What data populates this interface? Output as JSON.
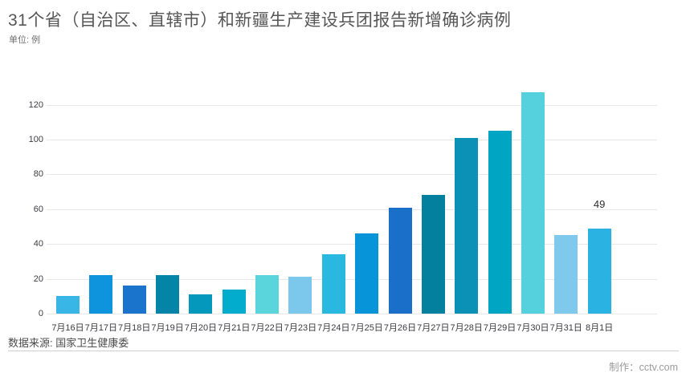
{
  "header": {
    "title": "31个省（自治区、直辖市）和新疆生产建设兵团报告新增确诊病例",
    "unit_label": "单位: 例"
  },
  "footer": {
    "source": "数据来源: 国家卫生健康委",
    "credit": "制作：cctv.com"
  },
  "chart_data": {
    "type": "bar",
    "title": "31个省（自治区、直辖市）和新疆生产建设兵团报告新增确诊病例",
    "unit": "例",
    "categories": [
      "7月16日",
      "7月17日",
      "7月18日",
      "7月19日",
      "7月20日",
      "7月21日",
      "7月22日",
      "7月23日",
      "7月24日",
      "7月25日",
      "7月26日",
      "7月27日",
      "7月28日",
      "7月29日",
      "7月30日",
      "7月31日",
      "8月1日"
    ],
    "values": [
      10,
      22,
      16,
      22,
      11,
      14,
      22,
      21,
      34,
      46,
      61,
      68,
      101,
      105,
      127,
      45,
      49
    ],
    "bar_colors": [
      "#38B6E6",
      "#0D94DC",
      "#1B74CC",
      "#0485A8",
      "#0398BC",
      "#02ACCC",
      "#5BD5DC",
      "#7CC7EC",
      "#29B8E0",
      "#0894D8",
      "#1A70C8",
      "#04809F",
      "#0A91B5",
      "#00A5C4",
      "#55D1DE",
      "#7FC9EC",
      "#29B2E2"
    ],
    "xlabel": "",
    "ylabel": "",
    "ylim": [
      0,
      130
    ],
    "yticks": [
      0,
      20,
      40,
      60,
      80,
      100,
      120
    ],
    "grid": true,
    "legend": false,
    "annotations": [
      {
        "category": "8月1日",
        "text": "49"
      }
    ]
  }
}
